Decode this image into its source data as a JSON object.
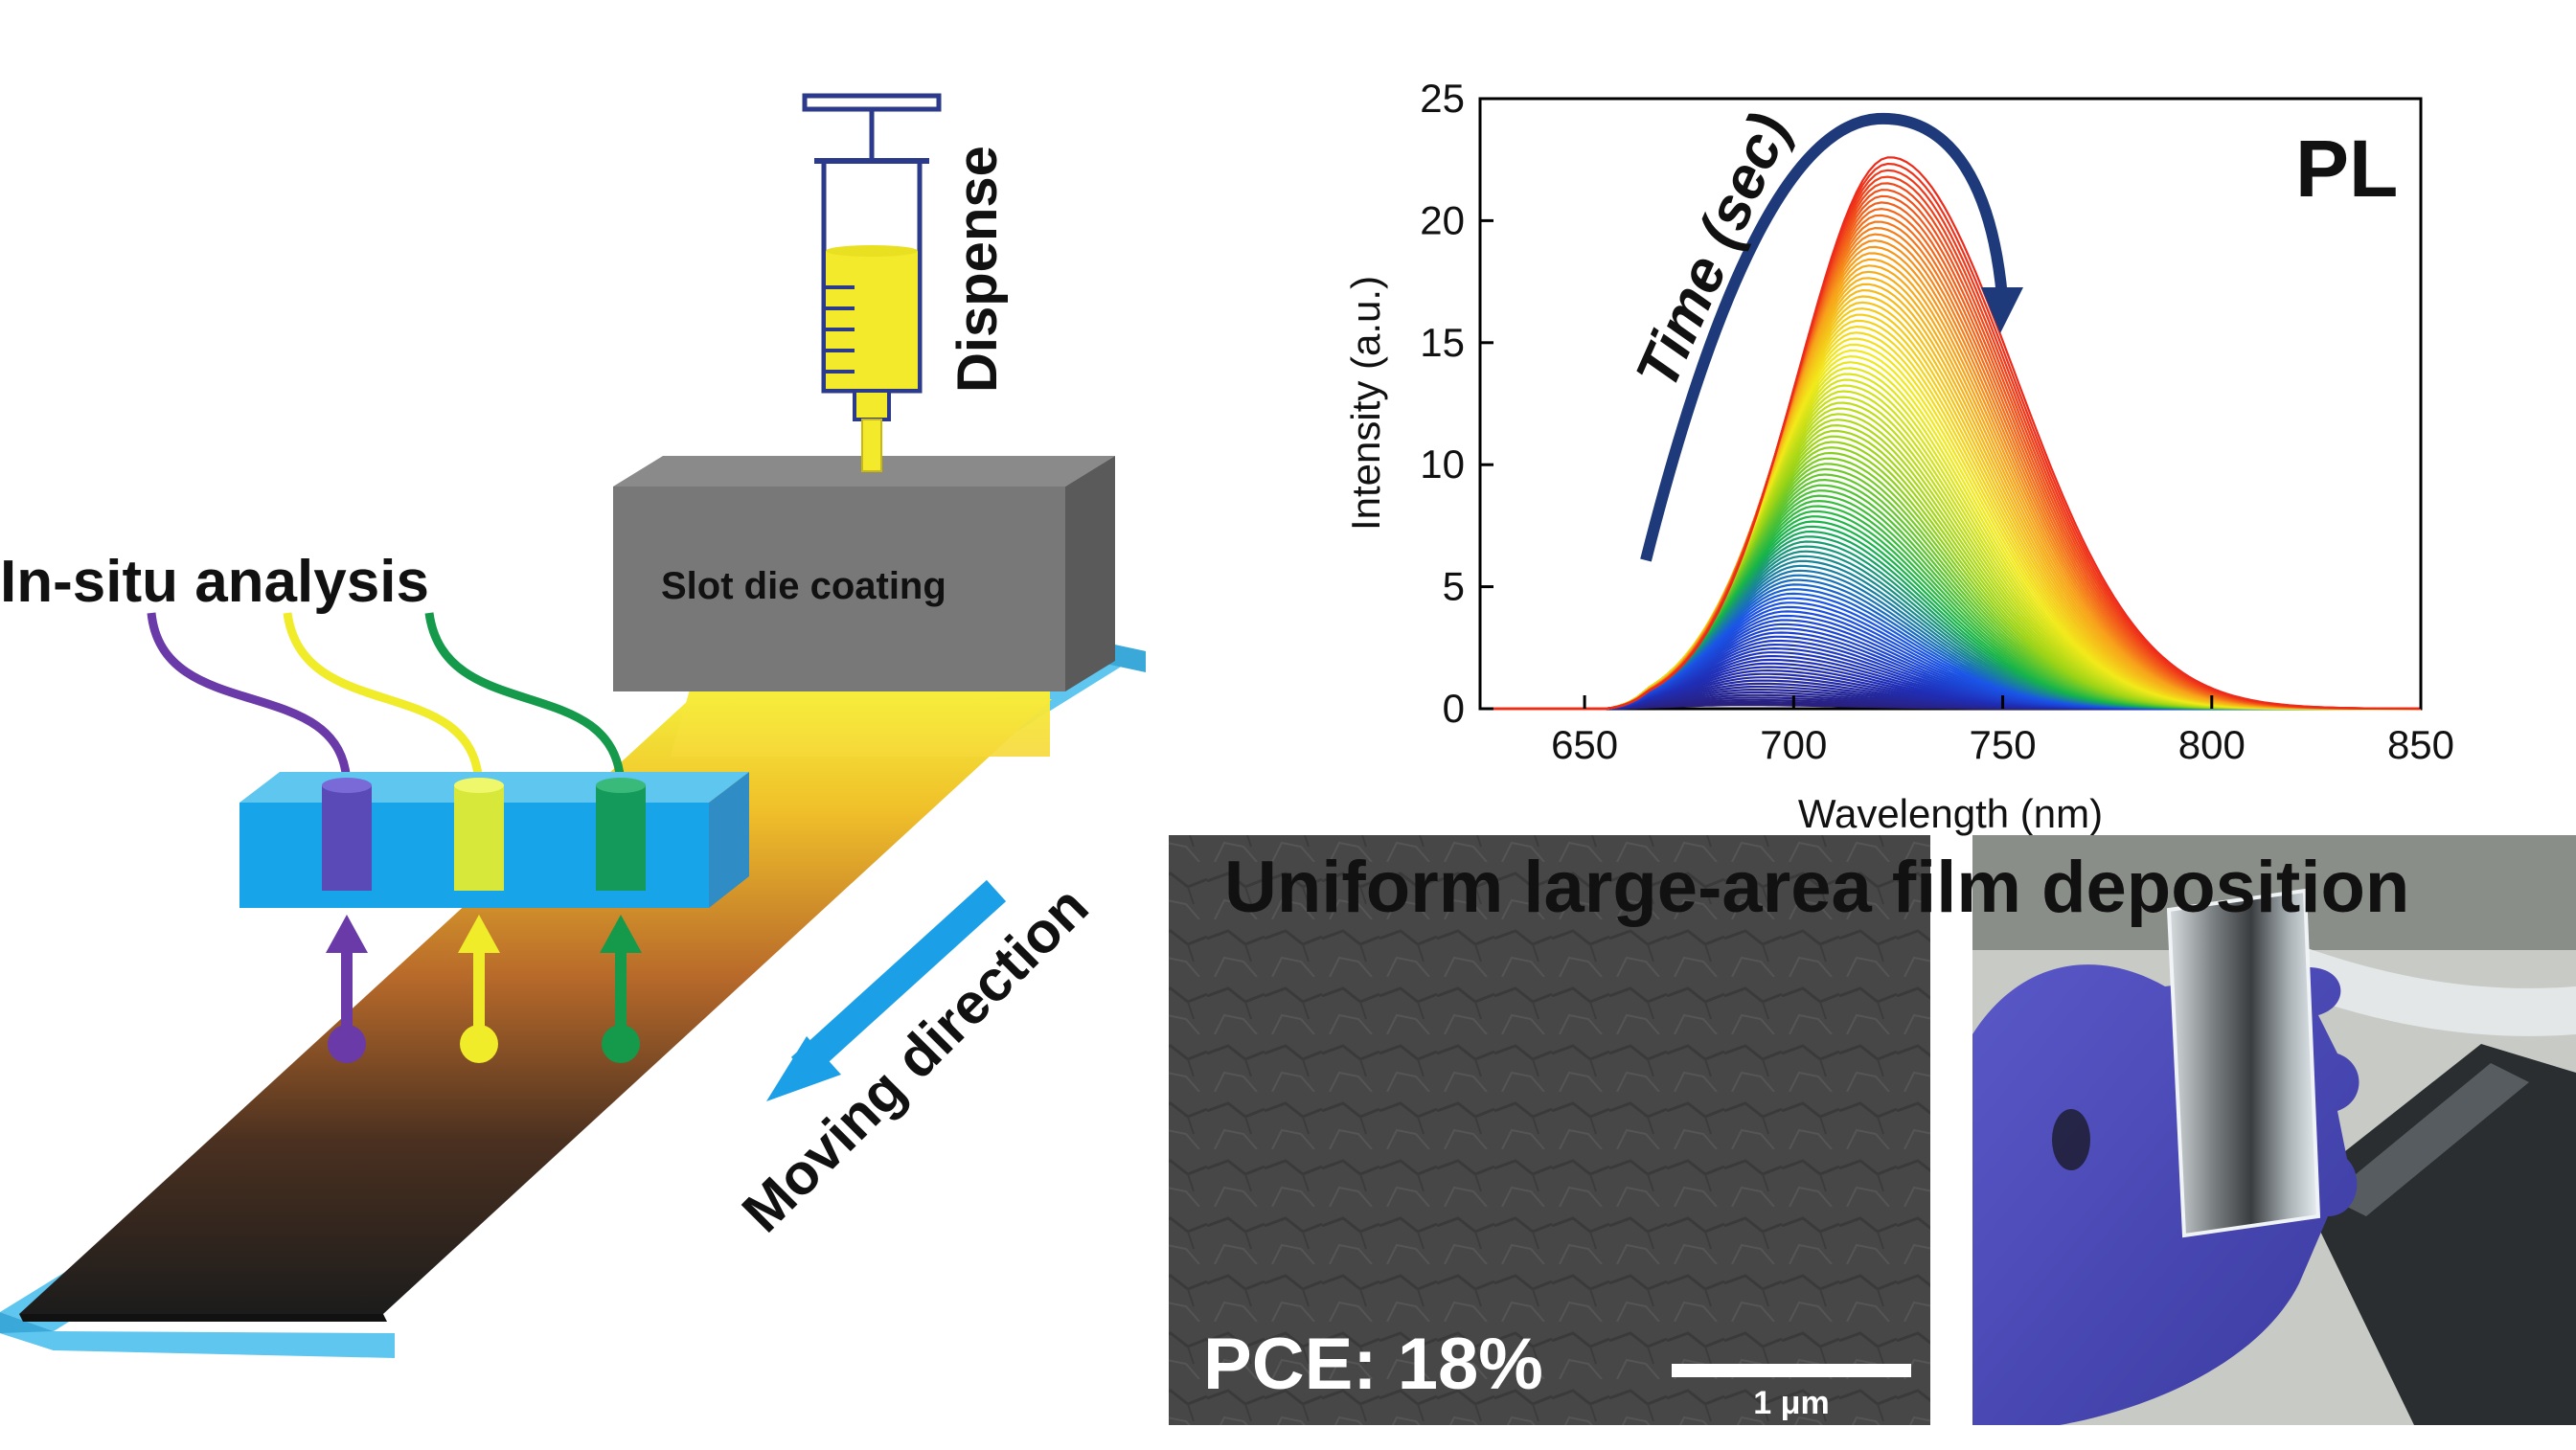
{
  "schematic": {
    "dispense_label": "Dispense",
    "slot_die_label": "Slot die coating",
    "in_situ_label": "In-situ analysis",
    "moving_label": "Moving direction",
    "probe_colors": [
      "#6a3aa8",
      "#e8e82a",
      "#149a4a"
    ],
    "ink_color": "#f2ea2a",
    "substrate_color": "#5fc6ef"
  },
  "chart_data": {
    "type": "line",
    "panel_label": "PL",
    "xlabel": "Wavelength (nm)",
    "ylabel": "Intensity (a.u.)",
    "xlim": [
      625,
      850
    ],
    "ylim": [
      0,
      25
    ],
    "xticks": [
      650,
      700,
      750,
      800,
      850
    ],
    "yticks": [
      0,
      5,
      10,
      15,
      20,
      25
    ],
    "annotation": "Time (sec)",
    "series_summary": {
      "count": 110,
      "peak_start_nm": 688,
      "peak_end_nm": 723,
      "max_intensity_start": 0.15,
      "max_intensity_end": 22.6,
      "color_progression": [
        "#2a1f7a",
        "#1f2fb8",
        "#1a55e8",
        "#17b44a",
        "#9ad417",
        "#f2ea1a",
        "#f7a21a",
        "#ee2a1a"
      ]
    }
  },
  "bottom": {
    "title": "Uniform large-area film deposition",
    "pce_label": "PCE: 18%",
    "scale_label": "1 μm"
  }
}
